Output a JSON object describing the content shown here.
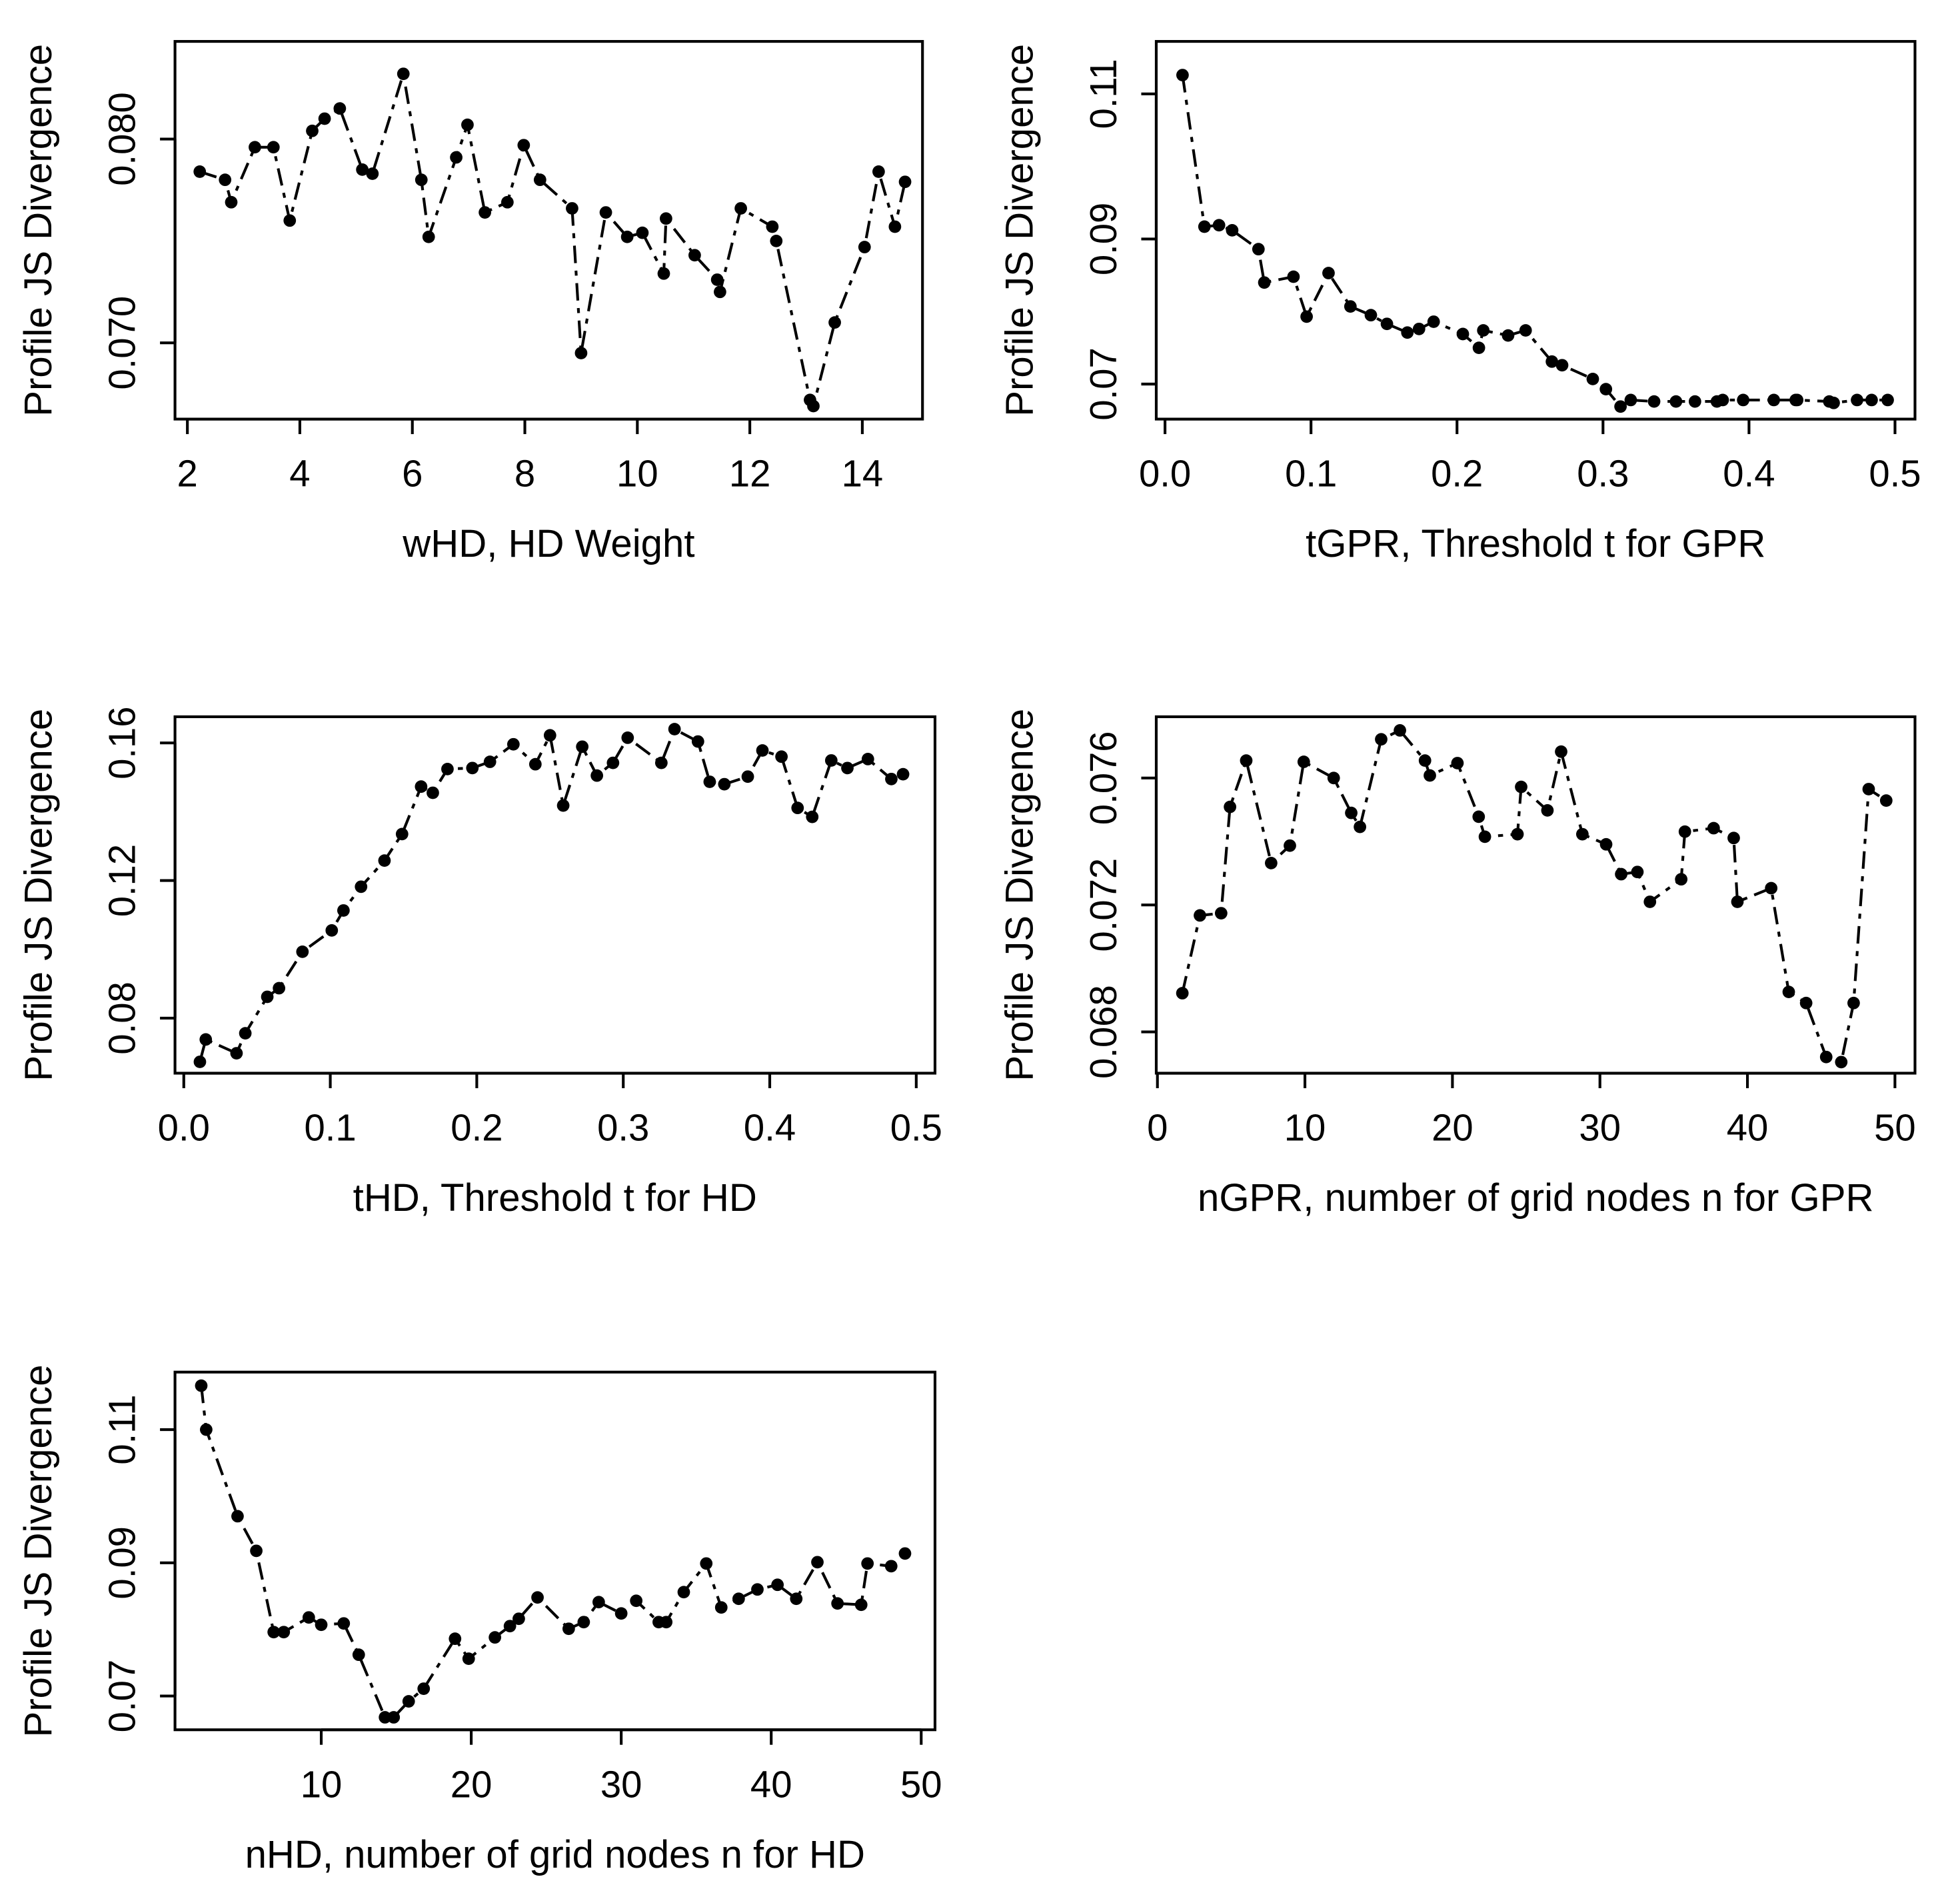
{
  "chart_data": [
    {
      "type": "line",
      "ylabel": "Profile JS Divergence",
      "xlabel": "wHD, HD Weight",
      "color": "#000000",
      "x": [
        2.22,
        2.67,
        2.78,
        3.2,
        3.53,
        3.82,
        4.22,
        4.44,
        4.71,
        5.11,
        5.29,
        5.84,
        6.16,
        6.29,
        6.78,
        6.98,
        7.29,
        7.69,
        7.98,
        8.27,
        8.84,
        9.0,
        9.44,
        9.82,
        10.09,
        10.47,
        10.51,
        11.02,
        11.42,
        11.47,
        11.84,
        12.4,
        12.47,
        13.07,
        13.13,
        13.51,
        14.04,
        14.29,
        14.58,
        14.76
      ],
      "values": [
        0.0784,
        0.078,
        0.0769,
        0.0796,
        0.0796,
        0.076,
        0.0804,
        0.081,
        0.0815,
        0.0785,
        0.0783,
        0.0832,
        0.078,
        0.0752,
        0.0791,
        0.0807,
        0.0764,
        0.0769,
        0.0797,
        0.078,
        0.0766,
        0.0695,
        0.0764,
        0.0752,
        0.0754,
        0.0734,
        0.0761,
        0.0743,
        0.0731,
        0.0725,
        0.0766,
        0.0757,
        0.075,
        0.0672,
        0.0669,
        0.071,
        0.0747,
        0.0784,
        0.0757,
        0.0779
      ],
      "xlim": [
        1.78,
        15.07
      ],
      "ylim": [
        0.06626,
        0.08479
      ],
      "xticks": [
        2,
        4,
        6,
        8,
        10,
        12,
        14
      ],
      "yticks": [
        {
          "value": 0.07,
          "label": "0.070"
        },
        {
          "value": 0.08,
          "label": "0.080"
        }
      ]
    },
    {
      "type": "line",
      "ylabel": "Profile JS Divergence",
      "xlabel": "tGPR, Threshold t for GPR",
      "color": "#000000",
      "x": [
        0.012,
        0.027,
        0.037,
        0.046,
        0.064,
        0.068,
        0.088,
        0.097,
        0.112,
        0.127,
        0.141,
        0.152,
        0.166,
        0.174,
        0.184,
        0.204,
        0.215,
        0.218,
        0.235,
        0.247,
        0.265,
        0.272,
        0.293,
        0.302,
        0.312,
        0.319,
        0.335,
        0.35,
        0.363,
        0.378,
        0.382,
        0.396,
        0.417,
        0.432,
        0.433,
        0.455,
        0.458,
        0.474,
        0.484,
        0.495
      ],
      "values": [
        0.1126,
        0.0917,
        0.0919,
        0.0912,
        0.0886,
        0.084,
        0.0848,
        0.0793,
        0.0853,
        0.0807,
        0.0795,
        0.0783,
        0.0771,
        0.0776,
        0.0786,
        0.0769,
        0.075,
        0.0774,
        0.0767,
        0.0774,
        0.0731,
        0.0726,
        0.0707,
        0.0693,
        0.0669,
        0.0678,
        0.0676,
        0.0676,
        0.0676,
        0.0676,
        0.0678,
        0.0678,
        0.0678,
        0.0678,
        0.0678,
        0.0676,
        0.0674,
        0.0678,
        0.0678,
        0.0678
      ],
      "xlim": [
        -0.006,
        0.5137
      ],
      "ylim": [
        0.06517,
        0.11724
      ],
      "xticks": [
        {
          "value": 0,
          "label": "0.0"
        },
        0.1,
        0.2,
        0.3,
        0.4,
        0.5
      ],
      "yticks": [
        0.07,
        0.09,
        0.11
      ]
    },
    {
      "type": "line",
      "ylabel": "Profile JS Divergence",
      "xlabel": "tHD, Threshold t for HD",
      "color": "#000000",
      "x": [
        0.011,
        0.015,
        0.036,
        0.042,
        0.057,
        0.065,
        0.081,
        0.101,
        0.109,
        0.121,
        0.137,
        0.149,
        0.162,
        0.17,
        0.18,
        0.197,
        0.209,
        0.225,
        0.24,
        0.25,
        0.259,
        0.272,
        0.282,
        0.293,
        0.303,
        0.326,
        0.335,
        0.351,
        0.359,
        0.369,
        0.385,
        0.395,
        0.408,
        0.419,
        0.429,
        0.442,
        0.453,
        0.467,
        0.483,
        0.491
      ],
      "values": [
        0.0673,
        0.0738,
        0.0698,
        0.0756,
        0.0862,
        0.0887,
        0.0993,
        0.1055,
        0.1113,
        0.1182,
        0.1258,
        0.1335,
        0.1473,
        0.1455,
        0.1524,
        0.1527,
        0.1545,
        0.1596,
        0.1538,
        0.1622,
        0.1418,
        0.1589,
        0.1505,
        0.1542,
        0.1615,
        0.1542,
        0.164,
        0.1604,
        0.1487,
        0.148,
        0.1502,
        0.1578,
        0.156,
        0.1411,
        0.1385,
        0.1549,
        0.1527,
        0.1553,
        0.1495,
        0.1509
      ],
      "xlim": [
        -0.006,
        0.5128
      ],
      "ylim": [
        0.064,
        0.1676
      ],
      "xticks": [
        {
          "value": 0,
          "label": "0.0"
        },
        0.1,
        0.2,
        0.3,
        0.4,
        0.5
      ],
      "yticks": [
        0.08,
        0.12,
        0.16
      ]
    },
    {
      "type": "line",
      "ylabel": "Profile JS Divergence",
      "xlabel": "nGPR, number of grid nodes n for GPR",
      "color": "#000000",
      "x": [
        1.69,
        2.88,
        4.32,
        4.92,
        6.02,
        7.71,
        8.98,
        9.92,
        11.95,
        13.14,
        13.73,
        15.17,
        16.44,
        18.14,
        18.47,
        20.34,
        21.78,
        22.2,
        24.41,
        24.66,
        26.44,
        27.37,
        28.81,
        30.42,
        31.44,
        32.54,
        33.39,
        35.51,
        35.76,
        37.71,
        39.07,
        39.32,
        41.61,
        42.8,
        43.98,
        45.34,
        46.36,
        47.2,
        48.22,
        49.41
      ],
      "values": [
        0.06922,
        0.07167,
        0.07174,
        0.07509,
        0.07655,
        0.07332,
        0.07387,
        0.07651,
        0.076,
        0.0749,
        0.07446,
        0.07722,
        0.0775,
        0.07655,
        0.07608,
        0.07647,
        0.07478,
        0.07415,
        0.07423,
        0.07572,
        0.07498,
        0.07683,
        0.07423,
        0.07391,
        0.07297,
        0.07304,
        0.0721,
        0.07281,
        0.07431,
        0.07442,
        0.07411,
        0.0721,
        0.07253,
        0.06926,
        0.06891,
        0.06721,
        0.06705,
        0.06891,
        0.07565,
        0.07529
      ],
      "xlim": [
        -0.08,
        51.36
      ],
      "ylim": [
        0.0667,
        0.07793
      ],
      "xticks": [
        0,
        10,
        20,
        30,
        40,
        50
      ],
      "yticks": [
        0.068,
        0.072,
        0.076
      ]
    },
    {
      "type": "line",
      "ylabel": "Profile JS Divergence",
      "xlabel": "nHD, number of grid nodes n for HD",
      "color": "#000000",
      "x": [
        2.0,
        2.33,
        4.42,
        5.67,
        6.83,
        7.5,
        9.17,
        10.0,
        11.5,
        12.5,
        14.25,
        14.83,
        15.83,
        16.83,
        18.92,
        19.83,
        21.58,
        22.58,
        23.17,
        24.42,
        26.5,
        27.5,
        28.5,
        30.0,
        31.0,
        32.5,
        33.0,
        34.17,
        35.67,
        36.67,
        37.83,
        39.08,
        40.42,
        41.67,
        43.08,
        44.42,
        46.0,
        46.42,
        48.0,
        48.92
      ],
      "values": [
        0.1166,
        0.11,
        0.097,
        0.0918,
        0.0796,
        0.0796,
        0.0818,
        0.0807,
        0.0809,
        0.0762,
        0.0668,
        0.0668,
        0.0692,
        0.0711,
        0.0786,
        0.0756,
        0.0788,
        0.0805,
        0.0816,
        0.0848,
        0.0801,
        0.0811,
        0.0841,
        0.0824,
        0.0843,
        0.0811,
        0.0811,
        0.0856,
        0.0899,
        0.0833,
        0.0846,
        0.086,
        0.0867,
        0.0846,
        0.0901,
        0.0839,
        0.0837,
        0.0899,
        0.0895,
        0.0914
      ],
      "xlim": [
        0.25,
        50.92
      ],
      "ylim": [
        0.06493,
        0.11864
      ],
      "xticks": [
        10,
        20,
        30,
        40,
        50
      ],
      "yticks": [
        0.07,
        0.09,
        0.11
      ]
    }
  ]
}
